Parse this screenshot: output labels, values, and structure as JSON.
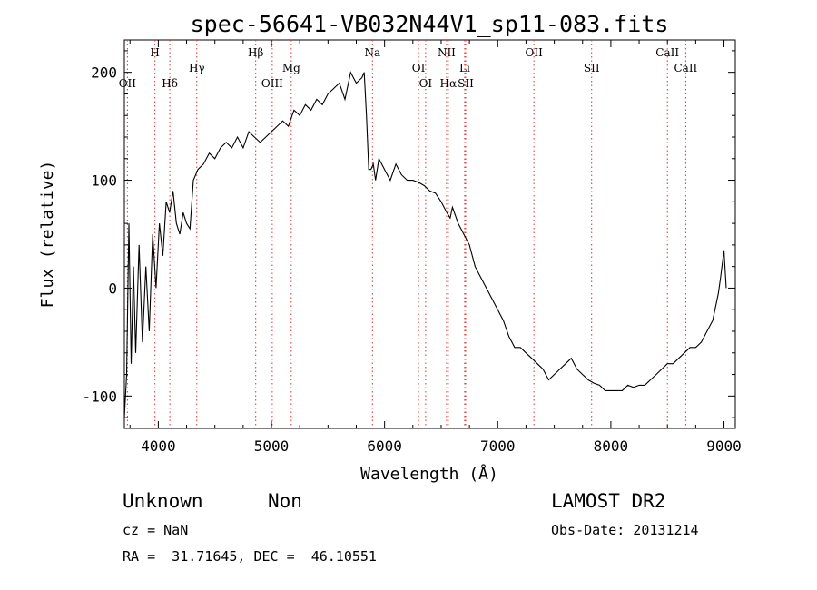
{
  "chart_data": {
    "type": "line",
    "title": "spec-56641-VB032N44V1_sp11-083.fits",
    "xlabel": "Wavelength (Å)",
    "ylabel": "Flux (relative)",
    "xlim": [
      3700,
      9100
    ],
    "ylim": [
      -130,
      230
    ],
    "xticks": [
      4000,
      5000,
      6000,
      7000,
      8000,
      9000
    ],
    "yticks": [
      -100,
      0,
      100,
      200
    ],
    "grid": false,
    "series": [
      {
        "x": [
          3700,
          3720,
          3740,
          3760,
          3780,
          3800,
          3830,
          3860,
          3890,
          3920,
          3950,
          3980,
          4010,
          4040,
          4070,
          4100,
          4130,
          4160,
          4190,
          4220,
          4250,
          4280,
          4310,
          4350,
          4400,
          4450,
          4500,
          4550,
          4600,
          4650,
          4700,
          4750,
          4800,
          4850,
          4900,
          4950,
          5000,
          5050,
          5100,
          5150,
          5200,
          5250,
          5300,
          5350,
          5400,
          5450,
          5500,
          5550,
          5600,
          5650,
          5700,
          5750,
          5800,
          5820,
          5840,
          5860,
          5880,
          5900,
          5920,
          5950,
          6000,
          6050,
          6100,
          6150,
          6200,
          6250,
          6300,
          6350,
          6400,
          6450,
          6500,
          6550,
          6580,
          6600,
          6650,
          6700,
          6750,
          6800,
          6850,
          6900,
          6950,
          7000,
          7050,
          7100,
          7150,
          7200,
          7250,
          7300,
          7350,
          7400,
          7450,
          7500,
          7550,
          7600,
          7650,
          7700,
          7750,
          7800,
          7850,
          7900,
          7950,
          8000,
          8050,
          8100,
          8150,
          8200,
          8250,
          8300,
          8350,
          8400,
          8450,
          8500,
          8550,
          8600,
          8650,
          8700,
          8750,
          8800,
          8850,
          8900,
          8950,
          8970,
          9000,
          9020
        ],
        "y": [
          -120,
          -80,
          60,
          -70,
          20,
          -60,
          40,
          -50,
          20,
          -40,
          50,
          0,
          60,
          30,
          80,
          70,
          90,
          60,
          50,
          70,
          60,
          55,
          100,
          110,
          115,
          125,
          120,
          130,
          135,
          130,
          140,
          130,
          145,
          140,
          135,
          140,
          145,
          150,
          155,
          150,
          165,
          160,
          170,
          165,
          175,
          170,
          180,
          185,
          190,
          175,
          200,
          190,
          195,
          200,
          160,
          110,
          110,
          115,
          100,
          120,
          110,
          100,
          115,
          105,
          100,
          100,
          98,
          95,
          90,
          88,
          80,
          70,
          65,
          75,
          60,
          50,
          40,
          20,
          10,
          0,
          -10,
          -20,
          -30,
          -45,
          -55,
          -55,
          -60,
          -65,
          -70,
          -75,
          -85,
          -80,
          -75,
          -70,
          -65,
          -75,
          -80,
          -85,
          -88,
          -90,
          -95,
          -95,
          -95,
          -95,
          -90,
          -92,
          -90,
          -90,
          -85,
          -80,
          -75,
          -70,
          -70,
          -65,
          -60,
          -55,
          -55,
          -50,
          -40,
          -30,
          -5,
          10,
          35,
          0
        ]
      }
    ],
    "lines": {
      "top": [
        {
          "label": "H",
          "x": 3970
        },
        {
          "label": "Hγ",
          "x": 4340
        },
        {
          "label": "Hβ",
          "x": 4861
        },
        {
          "label": "Mg",
          "x": 5175
        },
        {
          "label": "Na",
          "x": 5893
        },
        {
          "label": "OI",
          "x": 6300
        },
        {
          "label": "NII",
          "x": 6548
        },
        {
          "label": "Li",
          "x": 6708
        },
        {
          "label": "OII",
          "x": 7320
        },
        {
          "label": "SII",
          "x": 7830
        },
        {
          "label": "CaII",
          "x": 8500
        },
        {
          "label": "CaII",
          "x": 8662
        }
      ],
      "middle": [
        {
          "label": "OII",
          "x": 3727
        },
        {
          "label": "Hδ",
          "x": 4102
        },
        {
          "label": "OIII",
          "x": 5007
        },
        {
          "label": "OI",
          "x": 6363
        },
        {
          "label": "Hα",
          "x": 6563
        },
        {
          "label": "SII",
          "x": 6717
        }
      ]
    }
  },
  "info": {
    "class_label": "Unknown",
    "subclass_label": "Non",
    "survey": "LAMOST DR2",
    "cz": "cz = NaN",
    "obs_date": "Obs-Date: 20131214",
    "radec": "RA =  31.71645, DEC =  46.10551"
  }
}
